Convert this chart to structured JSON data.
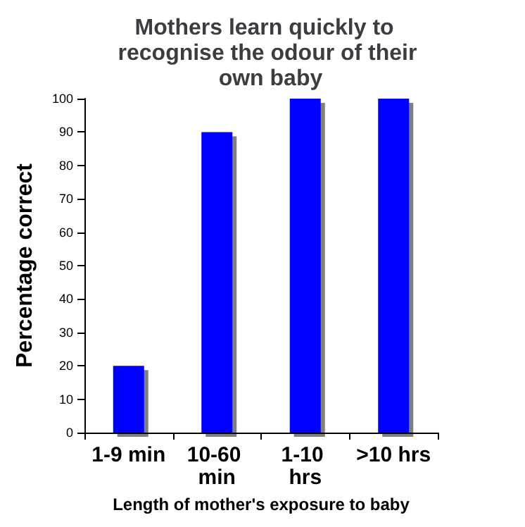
{
  "chart_data": {
    "type": "bar",
    "title": "Mothers learn quickly to recognise the odour of their own baby",
    "xlabel": "Length of mother's exposure to baby",
    "ylabel": "Percentage correct",
    "categories": [
      "1-9 min",
      "10-60 min",
      "1-10 hrs",
      ">10 hrs"
    ],
    "values": [
      20,
      90,
      100,
      100
    ],
    "color": "#0000ff",
    "ylim": [
      0,
      100
    ],
    "yticks": [
      0,
      10,
      20,
      30,
      40,
      50,
      60,
      70,
      80,
      90,
      100
    ],
    "grid": false
  }
}
